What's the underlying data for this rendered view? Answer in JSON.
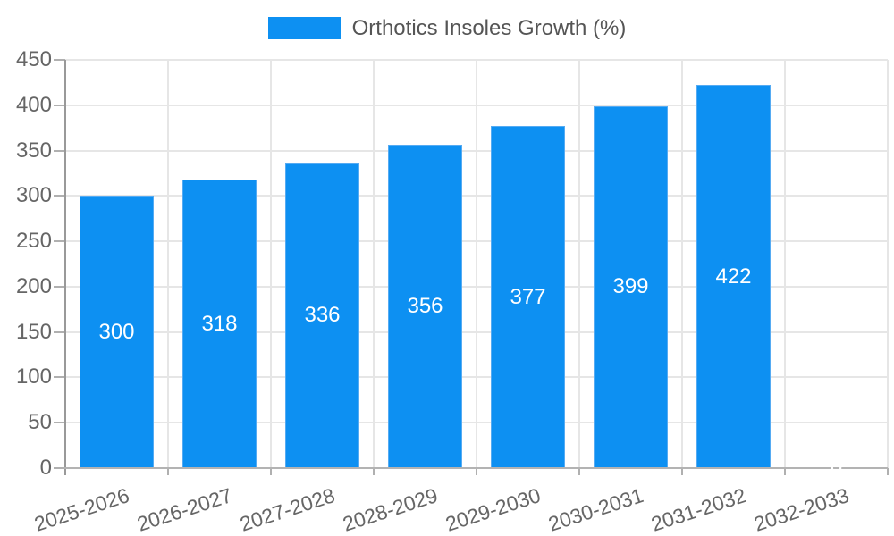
{
  "chart_data": {
    "type": "bar",
    "title": "Orthotics Insoles Growth (%)",
    "categories": [
      "2025-2026",
      "2026-2027",
      "2027-2028",
      "2028-2029",
      "2029-2030",
      "2030-2031",
      "2031-2032",
      "2032-2033"
    ],
    "values": [
      300,
      318,
      336,
      356,
      377,
      399,
      422,
      0
    ],
    "series": [
      {
        "name": "Orthotics Insoles Growth (%)",
        "values": [
          300,
          318,
          336,
          356,
          377,
          399,
          422,
          0
        ]
      }
    ],
    "bar_labels": [
      "300",
      "318",
      "336",
      "356",
      "377",
      "399",
      "422",
      "0"
    ],
    "xlabel": "",
    "ylabel": "",
    "ylim": [
      0,
      450
    ],
    "ytick_step": 50,
    "yticks": [
      "0",
      "50",
      "100",
      "150",
      "200",
      "250",
      "300",
      "350",
      "400",
      "450"
    ],
    "grid": true,
    "legend_position": "top-center",
    "x_label_rotation_deg": -18
  },
  "colors": {
    "bar": "#0d90f2",
    "bar_stroke": "#55abf3",
    "bar_label": "#ffffff",
    "gridline": "#e6e6e6",
    "y_axis_line": "#999999",
    "x_baseline": "#b3b3b3",
    "tick_mark": "#b0b0b0",
    "tick_text": "#666666",
    "legend_text": "#555555"
  }
}
